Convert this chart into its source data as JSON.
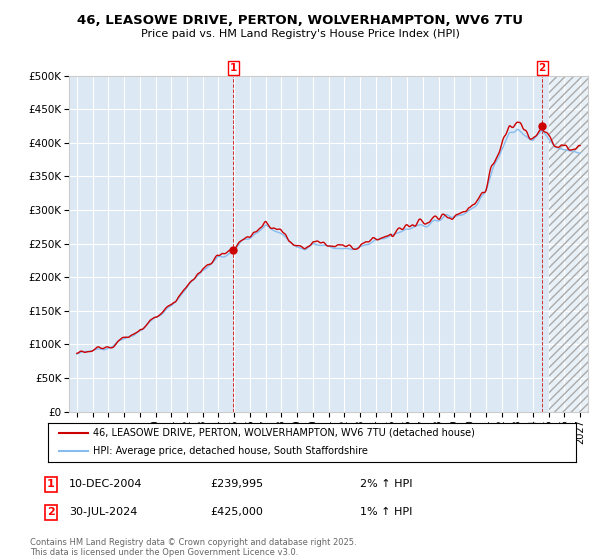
{
  "title": "46, LEASOWE DRIVE, PERTON, WOLVERHAMPTON, WV6 7TU",
  "subtitle": "Price paid vs. HM Land Registry's House Price Index (HPI)",
  "ylim": [
    0,
    500000
  ],
  "yticks": [
    0,
    50000,
    100000,
    150000,
    200000,
    250000,
    300000,
    350000,
    400000,
    450000,
    500000
  ],
  "ytick_labels": [
    "£0",
    "£50K",
    "£100K",
    "£150K",
    "£200K",
    "£250K",
    "£300K",
    "£350K",
    "£400K",
    "£450K",
    "£500K"
  ],
  "background_color": "#ffffff",
  "plot_bg_color": "#dce9f5",
  "grid_color": "#ffffff",
  "line1_color": "#cc0000",
  "line2_color": "#88bbee",
  "sale1_x": 2004.94,
  "sale1_y": 239995,
  "sale2_x": 2024.58,
  "sale2_y": 425000,
  "legend_label1": "46, LEASOWE DRIVE, PERTON, WOLVERHAMPTON, WV6 7TU (detached house)",
  "legend_label2": "HPI: Average price, detached house, South Staffordshire",
  "annotation1_date": "10-DEC-2004",
  "annotation1_price": "£239,995",
  "annotation1_hpi": "2% ↑ HPI",
  "annotation2_date": "30-JUL-2024",
  "annotation2_price": "£425,000",
  "annotation2_hpi": "1% ↑ HPI",
  "footer": "Contains HM Land Registry data © Crown copyright and database right 2025.\nThis data is licensed under the Open Government Licence v3.0.",
  "xlim_start": 1994.5,
  "xlim_end": 2027.5,
  "hatch_start": 2025.0,
  "xticks": [
    1995,
    1996,
    1997,
    1998,
    1999,
    2000,
    2001,
    2002,
    2003,
    2004,
    2005,
    2006,
    2007,
    2008,
    2009,
    2010,
    2011,
    2012,
    2013,
    2014,
    2015,
    2016,
    2017,
    2018,
    2019,
    2020,
    2021,
    2022,
    2023,
    2024,
    2025,
    2026,
    2027
  ]
}
